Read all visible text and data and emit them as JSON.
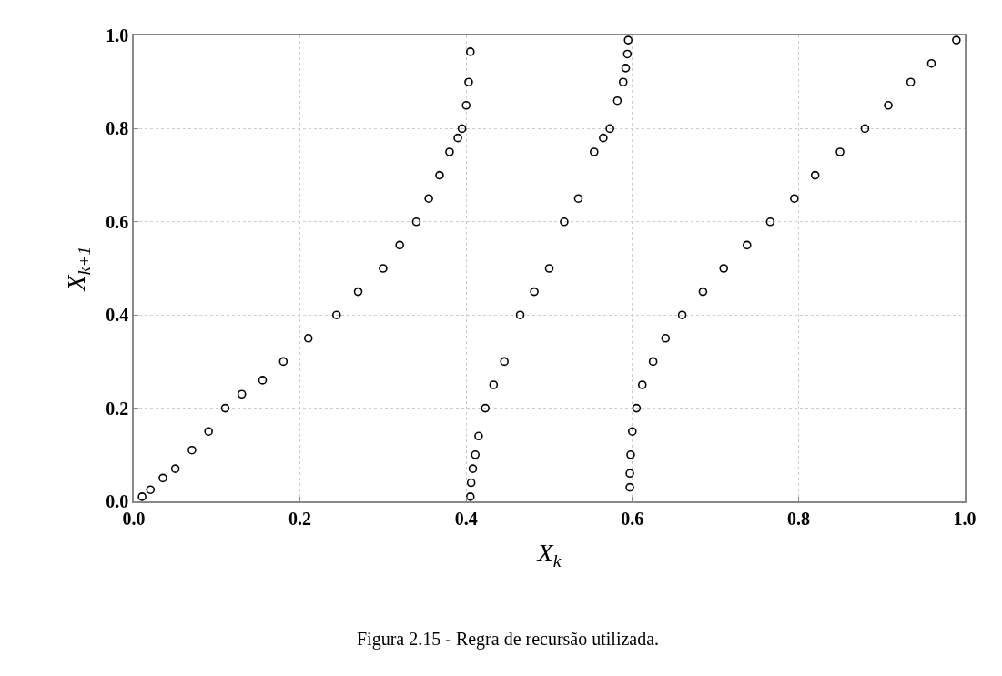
{
  "chart_data": {
    "type": "scatter",
    "xlabel": "X$_{k}$",
    "ylabel": "X$_{k+1}$",
    "series": [
      {
        "color": "#000000",
        "x": [
          0.01,
          0.02,
          0.035,
          0.05,
          0.07,
          0.09,
          0.11,
          0.13,
          0.155,
          0.18,
          0.21,
          0.244,
          0.27,
          0.3,
          0.32,
          0.34,
          0.355,
          0.368,
          0.38,
          0.39,
          0.395,
          0.4,
          0.403,
          0.405
        ],
        "values": [
          0.01,
          0.025,
          0.05,
          0.07,
          0.11,
          0.15,
          0.2,
          0.23,
          0.26,
          0.3,
          0.35,
          0.4,
          0.45,
          0.5,
          0.55,
          0.6,
          0.65,
          0.7,
          0.75,
          0.78,
          0.8,
          0.85,
          0.9,
          0.965
        ]
      },
      {
        "color": "#000000",
        "x": [
          0.405,
          0.406,
          0.408,
          0.411,
          0.415,
          0.423,
          0.433,
          0.446,
          0.465,
          0.482,
          0.5,
          0.518,
          0.535,
          0.554,
          0.565,
          0.573,
          0.582,
          0.589,
          0.592,
          0.594,
          0.595
        ],
        "values": [
          0.01,
          0.04,
          0.07,
          0.1,
          0.14,
          0.2,
          0.25,
          0.3,
          0.4,
          0.45,
          0.5,
          0.6,
          0.65,
          0.75,
          0.78,
          0.8,
          0.86,
          0.9,
          0.93,
          0.96,
          0.99
        ]
      },
      {
        "color": "#000000",
        "x": [
          0.597,
          0.597,
          0.598,
          0.6,
          0.605,
          0.612,
          0.625,
          0.64,
          0.66,
          0.685,
          0.71,
          0.738,
          0.766,
          0.795,
          0.82,
          0.85,
          0.88,
          0.908,
          0.935,
          0.96,
          0.99
        ],
        "values": [
          0.03,
          0.06,
          0.1,
          0.15,
          0.2,
          0.25,
          0.3,
          0.35,
          0.4,
          0.45,
          0.5,
          0.55,
          0.6,
          0.65,
          0.7,
          0.75,
          0.8,
          0.85,
          0.9,
          0.94,
          0.99
        ]
      }
    ],
    "xlim": [
      0,
      1
    ],
    "ylim": [
      0,
      1
    ],
    "xticks": [
      {
        "value": 0,
        "label": "0.0"
      },
      0.2,
      0.4,
      0.6,
      0.8,
      {
        "value": 1,
        "label": "1.0"
      }
    ],
    "yticks": [
      {
        "value": 0,
        "label": "0.0"
      },
      0.2,
      0.4,
      0.6,
      0.8,
      {
        "value": 1,
        "label": "1.0"
      }
    ],
    "grid": true,
    "marker": "circle",
    "annotations": [
      "Figura 2.15 - Regra de recursão utilizada."
    ]
  }
}
